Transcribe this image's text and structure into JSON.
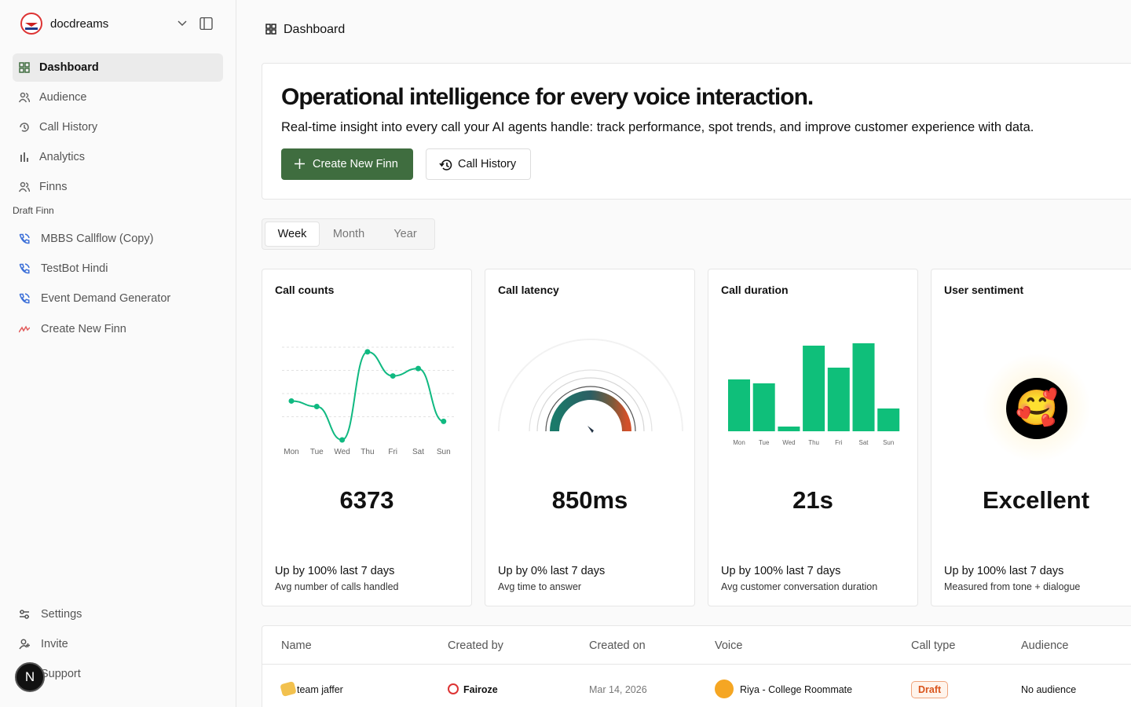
{
  "sidebar": {
    "workspace": "docdreams",
    "nav": [
      "Dashboard",
      "Audience",
      "Call History",
      "Analytics",
      "Finns"
    ],
    "section_label": "Draft Finn",
    "drafts": [
      "MBBS Callflow (Copy)",
      "TestBot Hindi",
      "Event Demand Generator",
      "Create New Finn"
    ],
    "footer": [
      "Settings",
      "Invite",
      "Support"
    ],
    "avatar": "N"
  },
  "header": {
    "title": "Dashboard"
  },
  "hero": {
    "title": "Operational intelligence for every voice interaction.",
    "subtitle": "Real-time insight into every call your AI agents handle: track performance, spot trends, and improve customer experience with data.",
    "primary_button": "Create New Finn",
    "secondary_button": "Call History"
  },
  "tabs": [
    "Week",
    "Month",
    "Year"
  ],
  "cards": [
    {
      "title": "Call counts",
      "chart_data": {
        "type": "line",
        "categories": [
          "Mon",
          "Tue",
          "Wed",
          "Thu",
          "Fri",
          "Sat",
          "Sun"
        ],
        "values": [
          42,
          36,
          0,
          95,
          69,
          77,
          20
        ],
        "ylim": [
          0,
          100
        ],
        "yticks": [
          25,
          50,
          75,
          100
        ],
        "grid": true,
        "color": "#10b981"
      },
      "value": "6373",
      "trend": "Up by 100% last 7 days",
      "caption": "Avg number of calls handled"
    },
    {
      "title": "Call latency",
      "value": "850ms",
      "trend": "Up by 0% last 7 days",
      "caption": "Avg time to answer"
    },
    {
      "title": "Call duration",
      "chart_data": {
        "type": "bar",
        "categories": [
          "Mon",
          "Tue",
          "Wed",
          "Thu",
          "Fri",
          "Sat",
          "Sun"
        ],
        "values": [
          66,
          61,
          6,
          109,
          81,
          112,
          29
        ],
        "ylim": [
          0,
          120
        ],
        "color": "#0fbf7a"
      },
      "value": "21s",
      "trend": "Up by 100% last 7 days",
      "caption": "Avg customer conversation duration"
    },
    {
      "title": "User sentiment",
      "value": "Excellent",
      "trend": "Up by 100% last 7 days",
      "caption": "Measured from tone + dialogue"
    }
  ],
  "table": {
    "columns": [
      "Name",
      "Created by",
      "Created on",
      "Voice",
      "Call type",
      "Audience"
    ],
    "rows": [
      [
        "team jaffer",
        "Fairoze",
        "Mar 14, 2026",
        "Riya - College Roommate",
        "Draft",
        "No audience"
      ]
    ]
  }
}
